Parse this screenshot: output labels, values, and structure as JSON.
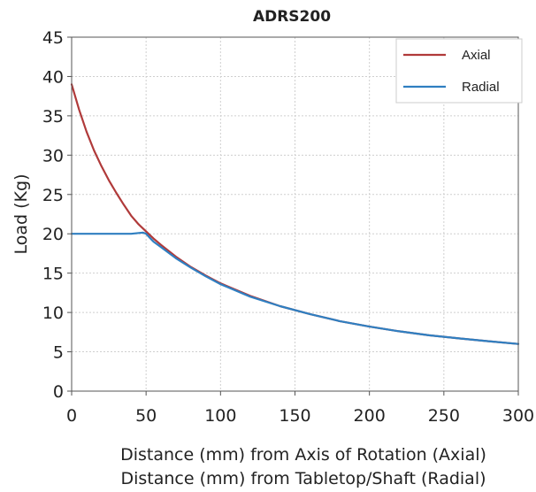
{
  "chart_data": {
    "type": "line",
    "title": "ADRS200",
    "xlabel": "Distance (mm) from Axis of Rotation (Axial)",
    "xlabel_line2": "Distance (mm) from Tabletop/Shaft (Radial)",
    "ylabel": "Load (Kg)",
    "xlim": [
      0,
      300
    ],
    "ylim": [
      0,
      45
    ],
    "xticks": [
      0,
      50,
      100,
      150,
      200,
      250,
      300
    ],
    "yticks": [
      0,
      5,
      10,
      15,
      20,
      25,
      30,
      35,
      40,
      45
    ],
    "grid": true,
    "legend_position": "top-right",
    "series": [
      {
        "name": "Axial",
        "color": "#b03a3a",
        "x": [
          0,
          5,
          10,
          15,
          20,
          25,
          30,
          35,
          40,
          45,
          50,
          55,
          60,
          70,
          80,
          90,
          100,
          120,
          140,
          160,
          180,
          200,
          220,
          240,
          260,
          280,
          300
        ],
        "y": [
          39.0,
          35.8,
          33.0,
          30.6,
          28.6,
          26.8,
          25.2,
          23.7,
          22.3,
          21.2,
          20.3,
          19.4,
          18.6,
          17.1,
          15.8,
          14.7,
          13.7,
          12.1,
          10.8,
          9.8,
          8.9,
          8.2,
          7.6,
          7.1,
          6.7,
          6.35,
          6.0
        ]
      },
      {
        "name": "Radial",
        "color": "#2f7fc1",
        "x": [
          0,
          10,
          20,
          30,
          40,
          45,
          48,
          50,
          52,
          55,
          60,
          70,
          80,
          90,
          100,
          120,
          140,
          160,
          180,
          200,
          220,
          240,
          260,
          280,
          300
        ],
        "y": [
          20.0,
          20.0,
          20.0,
          20.0,
          20.0,
          20.1,
          20.15,
          20.0,
          19.6,
          19.0,
          18.3,
          16.9,
          15.7,
          14.6,
          13.6,
          12.0,
          10.8,
          9.8,
          8.9,
          8.2,
          7.6,
          7.1,
          6.7,
          6.35,
          6.0
        ]
      }
    ]
  }
}
